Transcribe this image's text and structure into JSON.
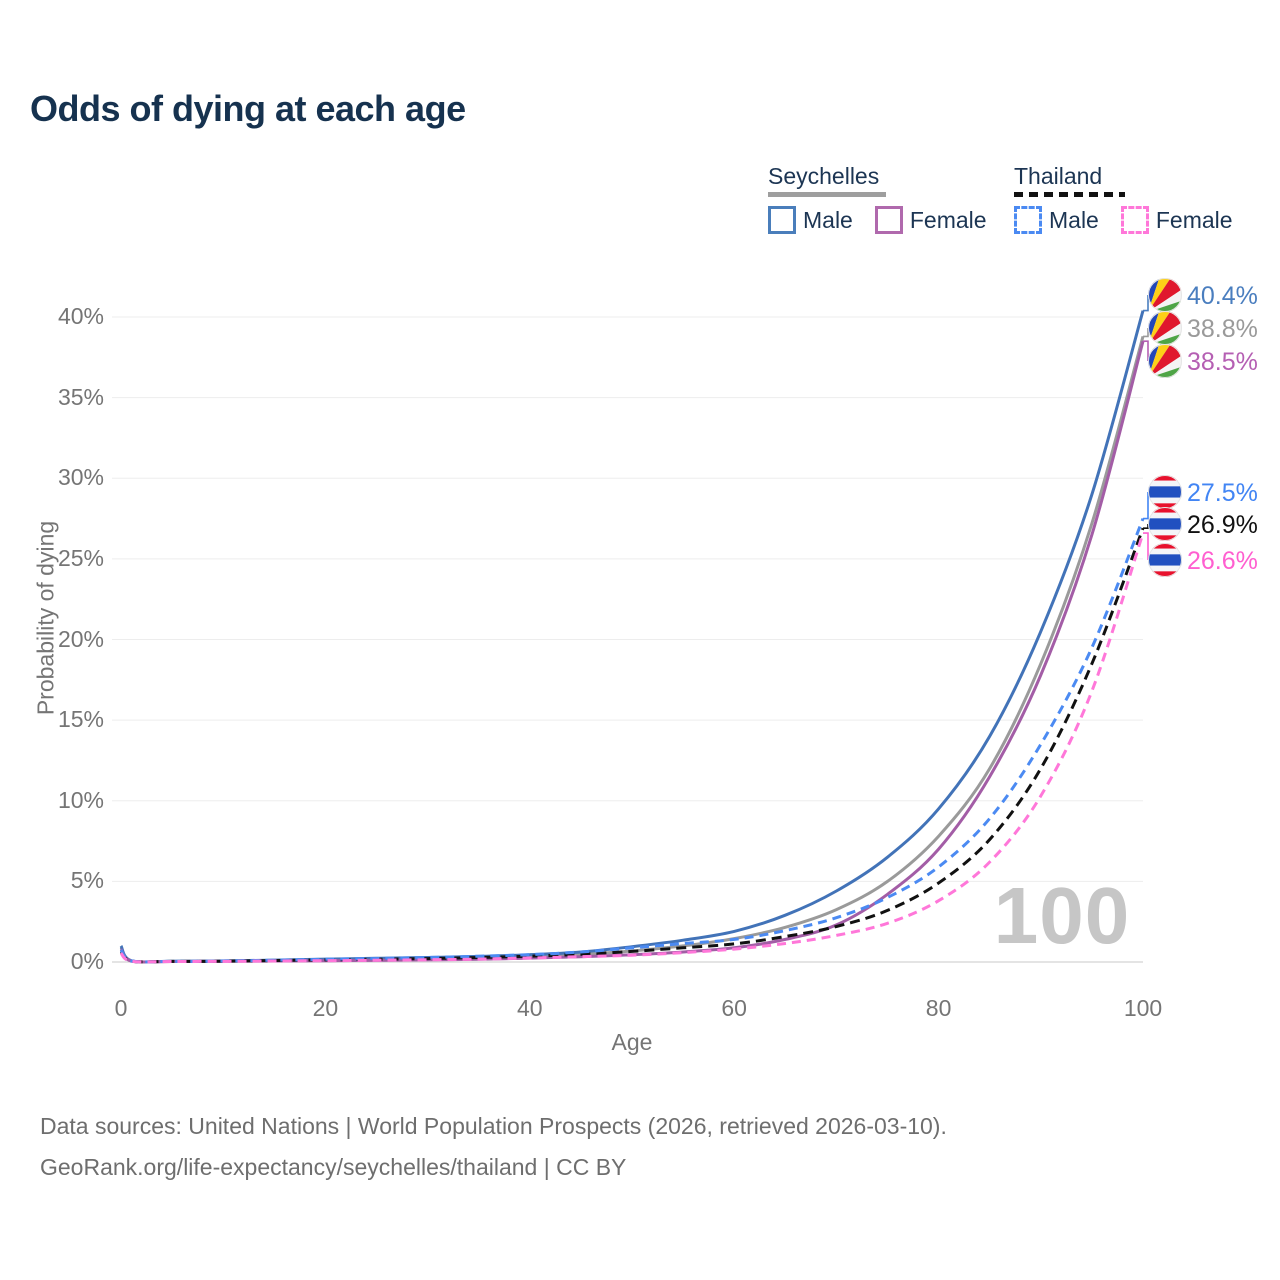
{
  "title": "Odds of dying at each age",
  "legend": {
    "groups": [
      {
        "name": "Seychelles",
        "line_style": "solid",
        "underline_color": "#9e9e9e",
        "items": [
          {
            "label": "Male",
            "swatch_color": "#4a7ebb",
            "dashed": false
          },
          {
            "label": "Female",
            "swatch_color": "#b069ad",
            "dashed": false
          }
        ]
      },
      {
        "name": "Thailand",
        "line_style": "dashed",
        "underline_color": "#111111",
        "items": [
          {
            "label": "Male",
            "swatch_color": "#4b8af2",
            "dashed": true
          },
          {
            "label": "Female",
            "swatch_color": "#ff77d9",
            "dashed": true
          }
        ]
      }
    ]
  },
  "axes": {
    "y_label": "Probability of dying",
    "x_label": "Age",
    "y_ticks": [
      "0%",
      "5%",
      "10%",
      "15%",
      "20%",
      "25%",
      "30%",
      "35%",
      "40%"
    ],
    "x_ticks": [
      "0",
      "20",
      "40",
      "60",
      "80",
      "100"
    ]
  },
  "watermark": "100",
  "footer": {
    "line1": "Data sources: United Nations | World Population Prospects (2026, retrieved 2026-03-10).",
    "line2": "GeoRank.org/life-expectancy/seychelles/thailand | CC BY"
  },
  "chart_data": {
    "type": "line",
    "title": "Odds of dying at each age",
    "xlabel": "Age",
    "ylabel": "Probability of dying",
    "xlim": [
      0,
      100
    ],
    "ylim": [
      0,
      42
    ],
    "grid": "horizontal",
    "x": [
      0,
      1,
      5,
      10,
      15,
      20,
      25,
      30,
      35,
      40,
      45,
      50,
      55,
      60,
      65,
      70,
      75,
      80,
      85,
      90,
      95,
      100
    ],
    "series": [
      {
        "name": "Seychelles Male",
        "country": "Seychelles",
        "sex": "Male",
        "flag": "seychelles",
        "color": "#4273b8",
        "label_color": "#4a7ebf",
        "dash": null,
        "end_label": "40.4%",
        "values": [
          1.0,
          0.08,
          0.05,
          0.07,
          0.12,
          0.18,
          0.23,
          0.28,
          0.35,
          0.45,
          0.62,
          0.95,
          1.35,
          1.9,
          2.9,
          4.4,
          6.5,
          9.5,
          14.0,
          20.5,
          29.0,
          40.4
        ]
      },
      {
        "name": "Seychelles Both sexes",
        "country": "Seychelles",
        "sex": "Both sexes",
        "flag": "seychelles",
        "color": "#9a9a9a",
        "label_color": "#9a9a9a",
        "dash": null,
        "end_label": "38.8%",
        "values": [
          0.9,
          0.07,
          0.04,
          0.06,
          0.09,
          0.13,
          0.16,
          0.2,
          0.27,
          0.35,
          0.48,
          0.68,
          1.0,
          1.45,
          2.15,
          3.25,
          5.0,
          7.8,
          12.0,
          18.5,
          27.2,
          38.8
        ]
      },
      {
        "name": "Seychelles Female",
        "country": "Seychelles",
        "sex": "Female",
        "flag": "seychelles",
        "color": "#a35da6",
        "label_color": "#b55fb3",
        "dash": null,
        "end_label": "38.5%",
        "values": [
          0.8,
          0.06,
          0.03,
          0.05,
          0.06,
          0.08,
          0.1,
          0.13,
          0.17,
          0.24,
          0.33,
          0.45,
          0.62,
          0.88,
          1.4,
          2.3,
          4.2,
          7.0,
          11.5,
          17.8,
          26.5,
          38.5
        ]
      },
      {
        "name": "Thailand Male",
        "country": "Thailand",
        "sex": "Male",
        "flag": "thailand",
        "color": "#4b8af2",
        "label_color": "#4285f4",
        "dash": "9 6",
        "end_label": "27.5%",
        "values": [
          0.75,
          0.07,
          0.04,
          0.06,
          0.11,
          0.17,
          0.22,
          0.28,
          0.36,
          0.46,
          0.62,
          0.88,
          1.15,
          1.4,
          1.95,
          2.75,
          4.0,
          5.9,
          8.9,
          13.5,
          19.5,
          27.5
        ]
      },
      {
        "name": "Thailand Both sexes",
        "country": "Thailand",
        "sex": "Both sexes",
        "flag": "thailand",
        "color": "#111111",
        "label_color": "#111111",
        "dash": "10 6",
        "end_label": "26.9%",
        "values": [
          0.65,
          0.06,
          0.035,
          0.05,
          0.09,
          0.13,
          0.17,
          0.21,
          0.28,
          0.36,
          0.48,
          0.66,
          0.88,
          1.12,
          1.58,
          2.2,
          3.2,
          4.9,
          7.6,
          12.0,
          18.5,
          26.9
        ]
      },
      {
        "name": "Thailand Female",
        "country": "Thailand",
        "sex": "Female",
        "flag": "thailand",
        "color": "#ff77d9",
        "label_color": "#ff5fd0",
        "dash": "9 6",
        "end_label": "26.6%",
        "values": [
          0.55,
          0.05,
          0.03,
          0.04,
          0.06,
          0.08,
          0.11,
          0.14,
          0.18,
          0.25,
          0.33,
          0.42,
          0.58,
          0.8,
          1.15,
          1.65,
          2.4,
          3.8,
          6.2,
          10.3,
          16.8,
          26.6
        ]
      }
    ],
    "flag_colors": {
      "seychelles": {
        "blue": "#2247b8",
        "yellow": "#fdd017",
        "red": "#e0182d",
        "white": "#f4f4f4",
        "green": "#4ea546"
      },
      "thailand": {
        "red": "#e8112d",
        "white": "#f4f5f8",
        "blue": "#2150c0"
      }
    }
  }
}
